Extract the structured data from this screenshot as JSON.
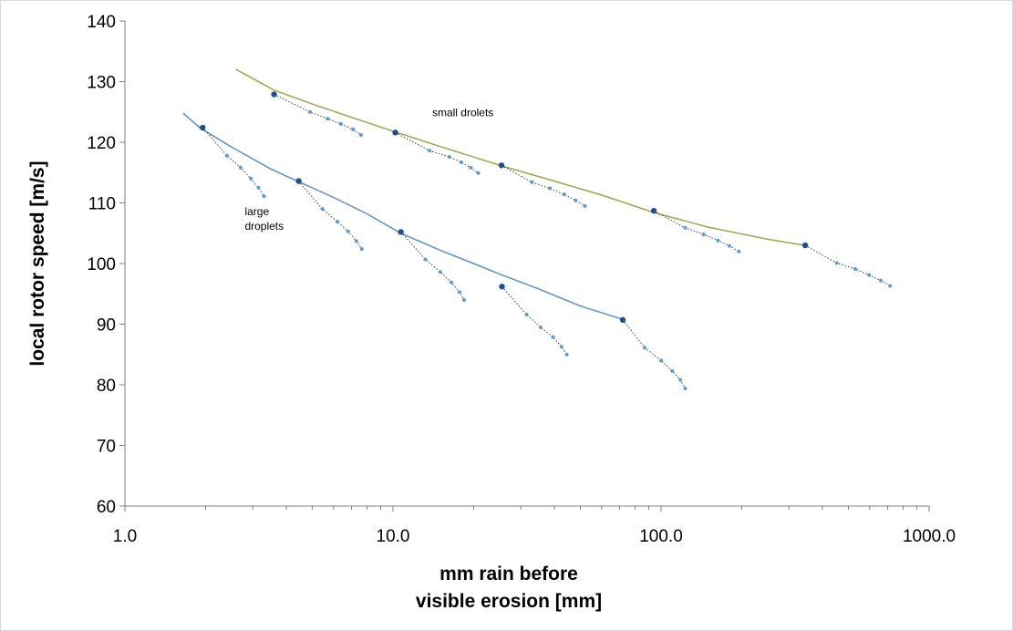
{
  "chart_data": {
    "type": "scatter",
    "title": "",
    "xlabel_lines": [
      "mm rain before",
      "visible erosion [mm]"
    ],
    "ylabel": "local rotor speed [m/s]",
    "x_scale": "log",
    "xlim": [
      1.0,
      1000.0
    ],
    "ylim": [
      60,
      140
    ],
    "x_ticks": [
      1.0,
      10.0,
      100.0,
      1000.0
    ],
    "x_tick_labels": [
      "1.0",
      "10.0",
      "100.0",
      "1000.0"
    ],
    "y_ticks": [
      60,
      70,
      80,
      90,
      100,
      110,
      120,
      130,
      140
    ],
    "y_tick_labels": [
      "60",
      "70",
      "80",
      "90",
      "100",
      "110",
      "120",
      "130",
      "140"
    ],
    "grid": false,
    "legend": "none",
    "annotations": [
      {
        "text_lines": [
          "small drolets"
        ],
        "x": 14.0,
        "y": 124.3
      },
      {
        "text_lines": [
          "large",
          "droplets"
        ],
        "x": 2.8,
        "y": 108.0
      }
    ],
    "colors": {
      "small_curve": "#9aa84a",
      "large_curve": "#5b8fcf",
      "anchor_point": "#1f4e8c",
      "sub_point": "#5b9bd5",
      "dotted_line": "#404040",
      "axis": "#7f7f7f"
    },
    "trend_curves": [
      {
        "group": "small droplets",
        "x": [
          2.6,
          3.6,
          5,
          7,
          10.2,
          15,
          25.4,
          40,
          60,
          94,
          150,
          250,
          345
        ],
        "y": [
          132,
          128.6,
          126.3,
          124.1,
          121.7,
          119.3,
          116.1,
          113.6,
          111.3,
          108.4,
          106.0,
          104.0,
          103.0
        ]
      },
      {
        "group": "large droplets",
        "x": [
          1.65,
          1.9,
          2.5,
          3.5,
          4.5,
          6,
          8,
          10.7,
          15,
          20,
          25.5,
          35,
          50,
          73
        ],
        "y": [
          124.8,
          122.4,
          119.2,
          115.6,
          113.4,
          110.9,
          108.2,
          105.0,
          102.2,
          100.0,
          98.1,
          95.8,
          93.0,
          90.7
        ]
      }
    ],
    "series": [
      {
        "group": "small droplets",
        "anchor": [
          3.6,
          127.9
        ],
        "x": [
          3.6,
          4.9,
          5.7,
          6.4,
          7.1,
          7.6
        ],
        "y": [
          127.9,
          125.0,
          123.9,
          123.0,
          122.1,
          121.2
        ]
      },
      {
        "group": "small droplets",
        "anchor": [
          10.2,
          121.6
        ],
        "x": [
          10.2,
          13.7,
          16.2,
          18.0,
          19.5,
          20.8
        ],
        "y": [
          121.6,
          118.6,
          117.6,
          116.7,
          115.8,
          114.9
        ]
      },
      {
        "group": "small droplets",
        "anchor": [
          25.4,
          116.2
        ],
        "x": [
          25.4,
          33.0,
          38.5,
          43.5,
          48.0,
          52.0
        ],
        "y": [
          116.2,
          113.4,
          112.4,
          111.4,
          110.4,
          109.5
        ]
      },
      {
        "group": "small droplets",
        "anchor": [
          94.0,
          108.7
        ],
        "x": [
          94.0,
          123.0,
          144.0,
          163.0,
          180.0,
          195.0
        ],
        "y": [
          108.7,
          105.9,
          104.8,
          103.8,
          102.9,
          102.0
        ]
      },
      {
        "group": "small droplets",
        "anchor": [
          345.0,
          103.0
        ],
        "x": [
          345.0,
          452.0,
          530.0,
          597.0,
          660.0,
          715.0
        ],
        "y": [
          103.0,
          100.1,
          99.1,
          98.1,
          97.2,
          96.3
        ]
      },
      {
        "group": "large droplets",
        "anchor": [
          1.95,
          122.4
        ],
        "x": [
          1.95,
          2.4,
          2.7,
          2.95,
          3.15,
          3.3
        ],
        "y": [
          122.4,
          117.8,
          115.8,
          114.0,
          112.5,
          111.1
        ]
      },
      {
        "group": "large droplets",
        "anchor": [
          4.45,
          113.6
        ],
        "x": [
          4.45,
          5.45,
          6.2,
          6.8,
          7.3,
          7.65
        ],
        "y": [
          113.6,
          109.0,
          106.9,
          105.3,
          103.7,
          102.4
        ]
      },
      {
        "group": "large droplets",
        "anchor": [
          10.7,
          105.2
        ],
        "x": [
          10.7,
          13.2,
          15.0,
          16.5,
          17.7,
          18.4
        ],
        "y": [
          105.2,
          100.7,
          98.6,
          96.9,
          95.3,
          94.0
        ]
      },
      {
        "group": "large droplets",
        "anchor": [
          25.5,
          96.2
        ],
        "x": [
          25.5,
          31.5,
          35.5,
          39.5,
          42.5,
          44.5
        ],
        "y": [
          96.2,
          91.6,
          89.5,
          87.9,
          86.3,
          85.0
        ]
      },
      {
        "group": "large droplets",
        "anchor": [
          72.0,
          90.7
        ],
        "x": [
          72.0,
          87.0,
          100.0,
          110.0,
          118.0,
          123.0
        ],
        "y": [
          90.7,
          86.1,
          84.0,
          82.3,
          80.8,
          79.4
        ]
      }
    ]
  }
}
